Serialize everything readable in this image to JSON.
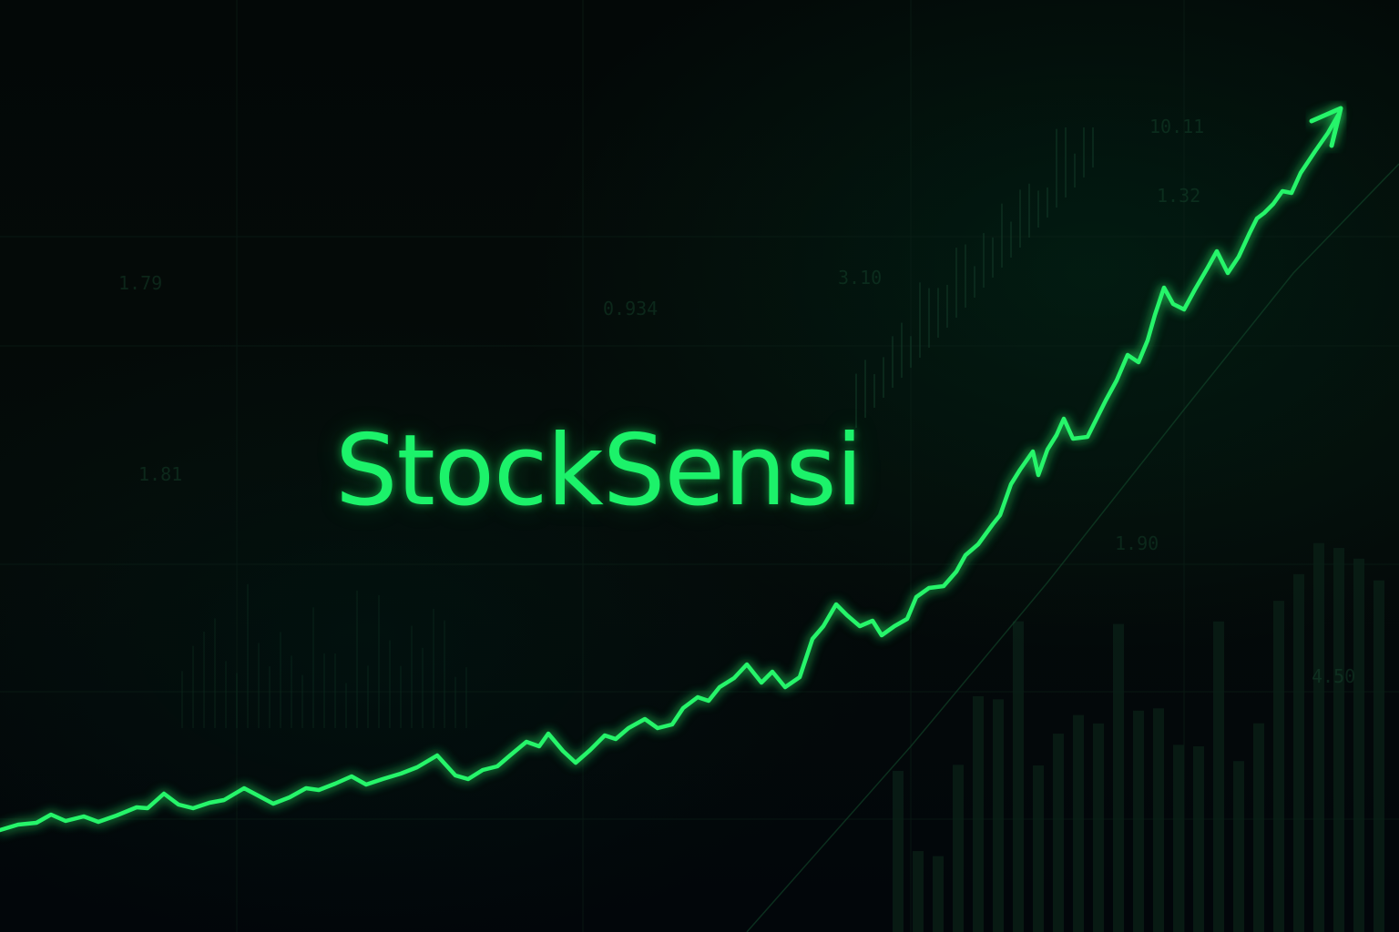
{
  "brand": {
    "title": "StockSensi"
  },
  "colors": {
    "background": "#030807",
    "accent": "#1cf26a",
    "line": "#27f56a",
    "grid": "#0d2a1d"
  },
  "icons": {
    "arrow": "trend-arrow-up-icon"
  },
  "chart_data": {
    "type": "line",
    "trend": "rising",
    "background_labels": [
      "1.79",
      "0.934",
      "3.10",
      "10.11",
      "1.90",
      "4.50",
      "1.81",
      "1.32"
    ]
  }
}
